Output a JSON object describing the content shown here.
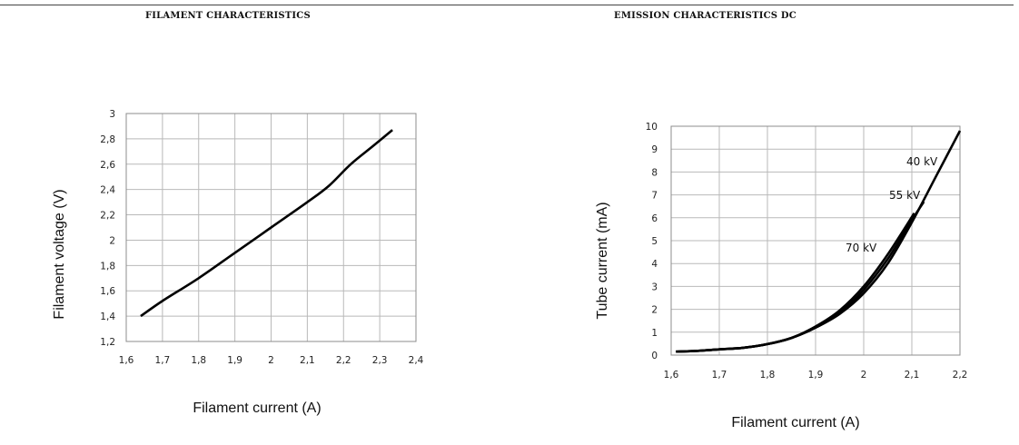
{
  "chart_data": [
    {
      "type": "line",
      "title": "FILAMENT CHARACTERISTICS",
      "xlabel": "Filament current (A)",
      "ylabel": "Filament voltage (V)",
      "xlim": [
        1.6,
        2.4
      ],
      "ylim": [
        1.2,
        3.0
      ],
      "x_ticks": [
        "1,6",
        "1,7",
        "1,8",
        "1,9",
        "2",
        "2,1",
        "2,2",
        "2,3",
        "2,4"
      ],
      "y_ticks": [
        "1,2",
        "1,4",
        "1,6",
        "1,8",
        "2",
        "2,2",
        "2,4",
        "2,6",
        "2,8",
        "3"
      ],
      "grid": true,
      "series": [
        {
          "x": [
            1.64,
            1.7,
            1.8,
            1.9,
            2.0,
            2.1,
            2.16,
            2.22,
            2.28,
            2.335
          ],
          "y": [
            1.4,
            1.52,
            1.7,
            1.9,
            2.1,
            2.3,
            2.43,
            2.6,
            2.74,
            2.87
          ]
        }
      ]
    },
    {
      "type": "line",
      "title": "EMISSION CHARACTERISTICS DC",
      "xlabel": "Filament current (A)",
      "ylabel": "Tube current (mA)",
      "xlim": [
        1.6,
        2.2
      ],
      "ylim": [
        0,
        10
      ],
      "x_ticks": [
        "1,6",
        "1,7",
        "1,8",
        "1,9",
        "2",
        "2,1",
        "2,2"
      ],
      "y_ticks": [
        "0",
        "1",
        "2",
        "3",
        "4",
        "5",
        "6",
        "7",
        "8",
        "9",
        "10"
      ],
      "grid": true,
      "series": [
        {
          "name": "40 kV",
          "x": [
            1.61,
            1.65,
            1.7,
            1.75,
            1.8,
            1.85,
            1.9,
            1.95,
            2.0,
            2.05,
            2.1,
            2.15,
            2.2
          ],
          "y": [
            0.15,
            0.18,
            0.25,
            0.32,
            0.48,
            0.75,
            1.2,
            1.8,
            2.7,
            4.0,
            5.8,
            7.8,
            9.8
          ]
        },
        {
          "name": "55 kV",
          "x": [
            1.61,
            1.65,
            1.7,
            1.75,
            1.8,
            1.85,
            1.9,
            1.95,
            2.0,
            2.05,
            2.1,
            2.125
          ],
          "y": [
            0.15,
            0.18,
            0.25,
            0.32,
            0.48,
            0.75,
            1.2,
            1.85,
            2.85,
            4.2,
            5.9,
            6.7
          ]
        },
        {
          "name": "70 kV",
          "x": [
            1.61,
            1.65,
            1.7,
            1.75,
            1.8,
            1.85,
            1.9,
            1.95,
            2.0,
            2.05,
            2.105
          ],
          "y": [
            0.15,
            0.18,
            0.25,
            0.32,
            0.48,
            0.75,
            1.25,
            1.95,
            3.0,
            4.4,
            6.2
          ]
        }
      ]
    }
  ]
}
